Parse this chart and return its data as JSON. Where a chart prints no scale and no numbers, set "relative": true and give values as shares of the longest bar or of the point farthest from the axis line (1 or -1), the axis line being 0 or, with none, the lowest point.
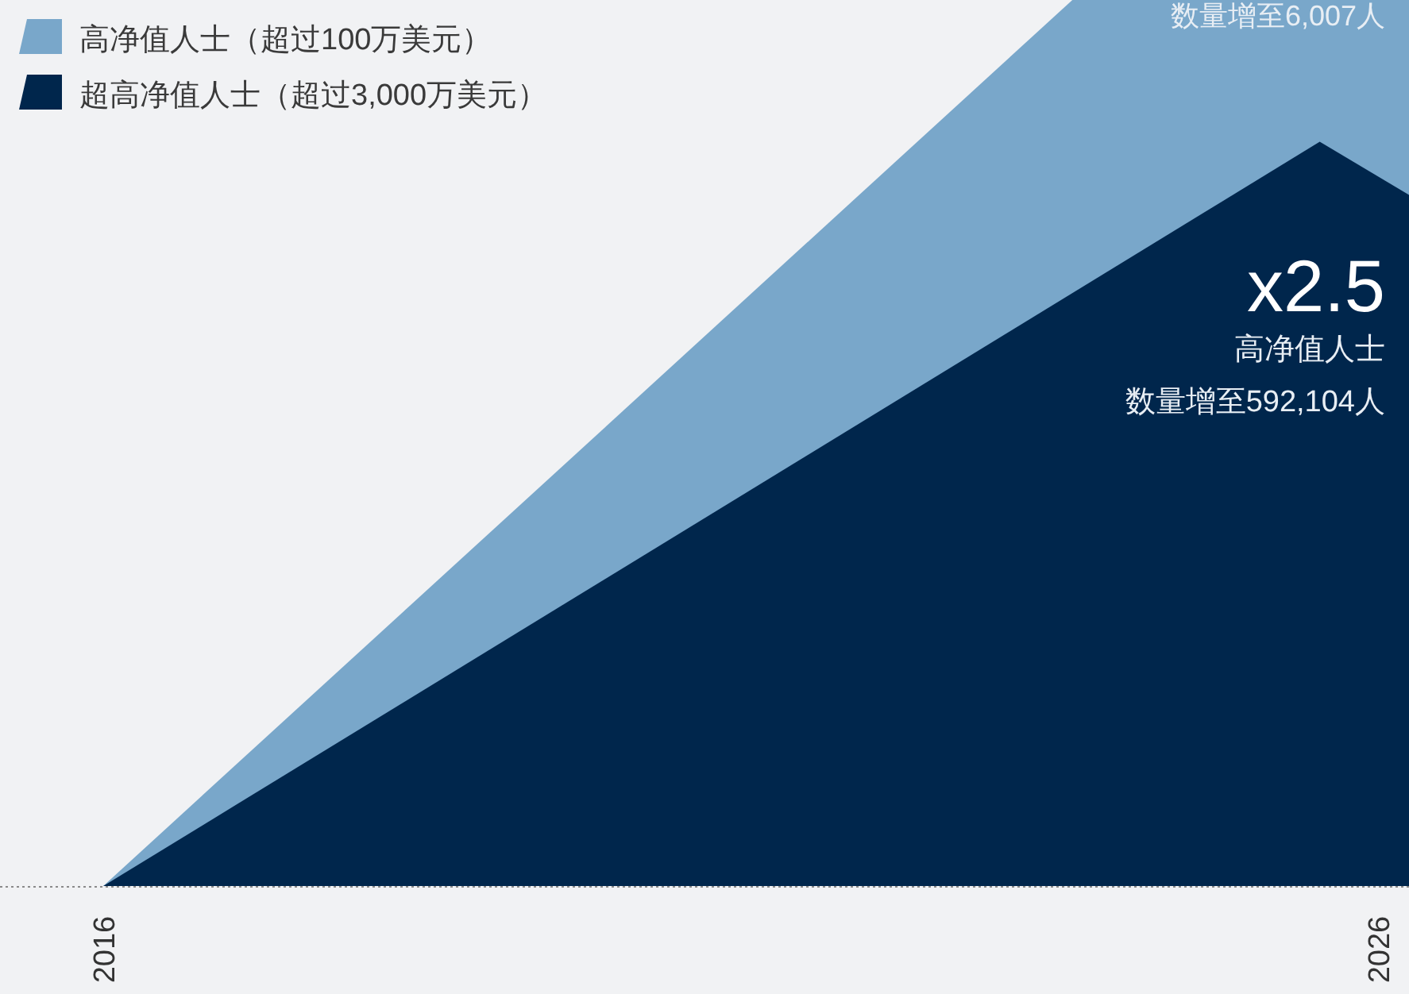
{
  "chart_data": {
    "type": "area",
    "relative": true,
    "legend": "top left",
    "series": [
      {
        "name": "高净值人士（超过100万美元）",
        "color": "#79a7ca",
        "x": [
          2016,
          2023.6,
          2026.24
        ],
        "values": [
          0,
          1,
          1
        ]
      },
      {
        "name": "超高净值人士（超过3,000万美元）",
        "color": "#00264c",
        "x": [
          2016,
          2025.54,
          2026.24
        ],
        "values": [
          0,
          0.84,
          0.78
        ]
      }
    ],
    "xlim": [
      2015.19,
      2026.24
    ],
    "xticks": [
      {
        "value": 2016,
        "label": "2016"
      },
      {
        "value": 2026,
        "label": "2026"
      }
    ],
    "annotations": [
      "数量增至6,007人",
      "x2.5",
      "高净值人士",
      "数量增至592,104人"
    ]
  }
}
